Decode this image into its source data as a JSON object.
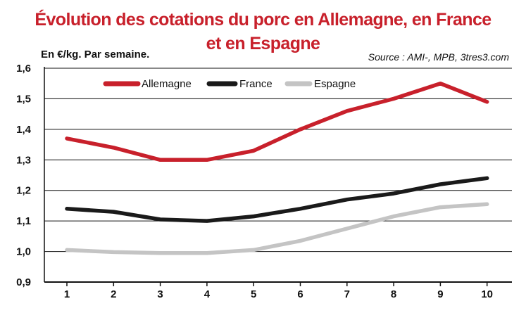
{
  "title_line1": "Évolution des cotations du porc en Allemagne, en France",
  "title_line2": "et en Espagne",
  "unit_label": "En €/kg. Par semaine.",
  "source": "Source : AMI-, MPB, 3tres3.com",
  "colors": {
    "title": "#c8202b",
    "Allemagne": "#c8202b",
    "France": "#1a1a1a",
    "Espagne": "#c4c4c4",
    "axis": "#111111",
    "grid": "#111111"
  },
  "chart_data": {
    "type": "line",
    "title": "Évolution des cotations du porc en Allemagne, en France et en Espagne",
    "ylabel": "En €/kg. Par semaine.",
    "xlabel": "",
    "categories": [
      "1",
      "2",
      "3",
      "4",
      "5",
      "6",
      "7",
      "8",
      "9",
      "10"
    ],
    "ylim": [
      0.9,
      1.6
    ],
    "yticks": [
      "0,9",
      "1,0",
      "1,1",
      "1,2",
      "1,3",
      "1,4",
      "1,5",
      "1,6"
    ],
    "yticks_values": [
      0.9,
      1.0,
      1.1,
      1.2,
      1.3,
      1.4,
      1.5,
      1.6
    ],
    "grid": true,
    "legend_position": "top",
    "series": [
      {
        "name": "Allemagne",
        "values": [
          1.37,
          1.34,
          1.3,
          1.3,
          1.33,
          1.4,
          1.46,
          1.5,
          1.55,
          1.49
        ]
      },
      {
        "name": "France",
        "values": [
          1.14,
          1.13,
          1.105,
          1.1,
          1.115,
          1.14,
          1.17,
          1.19,
          1.22,
          1.24
        ]
      },
      {
        "name": "Espagne",
        "values": [
          1.005,
          0.998,
          0.995,
          0.995,
          1.005,
          1.035,
          1.075,
          1.115,
          1.145,
          1.155
        ]
      }
    ]
  }
}
